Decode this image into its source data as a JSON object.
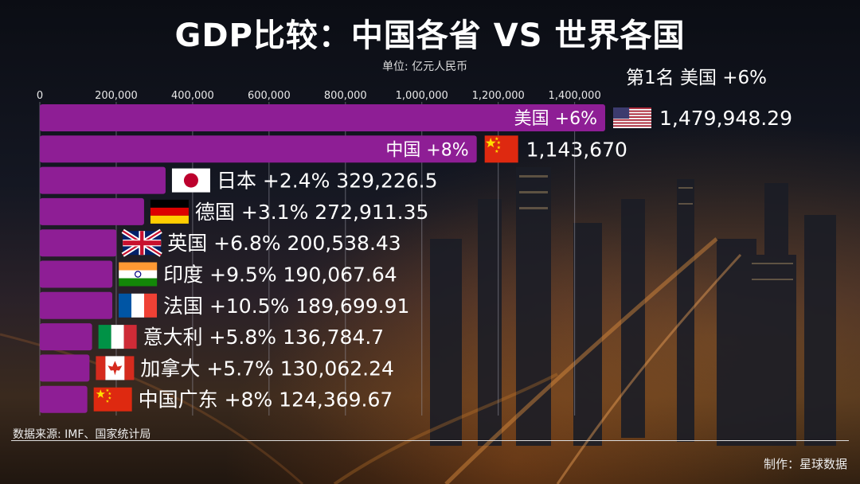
{
  "title": "GDP比较：中国各省 VS 世界各国",
  "unit": "单位: 亿元人民币",
  "leader": "第1名 美国  +6%",
  "source": "数据来源: IMF、国家统计局",
  "credit": "制作：星球数据",
  "colors": {
    "bar": "#8e1e95",
    "grid": "#9a9aa6"
  },
  "chart_data": {
    "type": "bar",
    "orientation": "horizontal",
    "xlim": [
      0,
      1479948.29
    ],
    "x_ticks": [
      0,
      200000,
      400000,
      600000,
      800000,
      1000000,
      1200000,
      1400000
    ],
    "x_tick_labels": [
      "0",
      "200,000",
      "400,000",
      "600,000",
      "800,000",
      "1,000,000",
      "1,200,000",
      "1,400,000"
    ],
    "grid": true,
    "bars": [
      {
        "name": "美国",
        "change": "+6%",
        "value": 1479948.29,
        "value_label": "1,479,948.29",
        "flag": "usa-flag"
      },
      {
        "name": "中国",
        "change": "+8%",
        "value": 1143670,
        "value_label": "1,143,670",
        "flag": "china-flag"
      },
      {
        "name": "日本",
        "change": "+2.4%",
        "value": 329226.5,
        "value_label": "329,226.5",
        "flag": "japan-flag"
      },
      {
        "name": "德国",
        "change": "+3.1%",
        "value": 272911.35,
        "value_label": "272,911.35",
        "flag": "germany-flag"
      },
      {
        "name": "英国",
        "change": "+6.8%",
        "value": 200538.43,
        "value_label": "200,538.43",
        "flag": "uk-flag"
      },
      {
        "name": "印度",
        "change": "+9.5%",
        "value": 190067.64,
        "value_label": "190,067.64",
        "flag": "india-flag"
      },
      {
        "name": "法国",
        "change": "+10.5%",
        "value": 189699.91,
        "value_label": "189,699.91",
        "flag": "france-flag"
      },
      {
        "name": "意大利",
        "change": "+5.8%",
        "value": 136784.7,
        "value_label": "136,784.7",
        "flag": "italy-flag"
      },
      {
        "name": "加拿大",
        "change": "+5.7%",
        "value": 130062.24,
        "value_label": "130,062.24",
        "flag": "canada-flag"
      },
      {
        "name": "中国广东",
        "change": "+8%",
        "value": 124369.67,
        "value_label": "124,369.67",
        "flag": "china-flag"
      }
    ]
  }
}
